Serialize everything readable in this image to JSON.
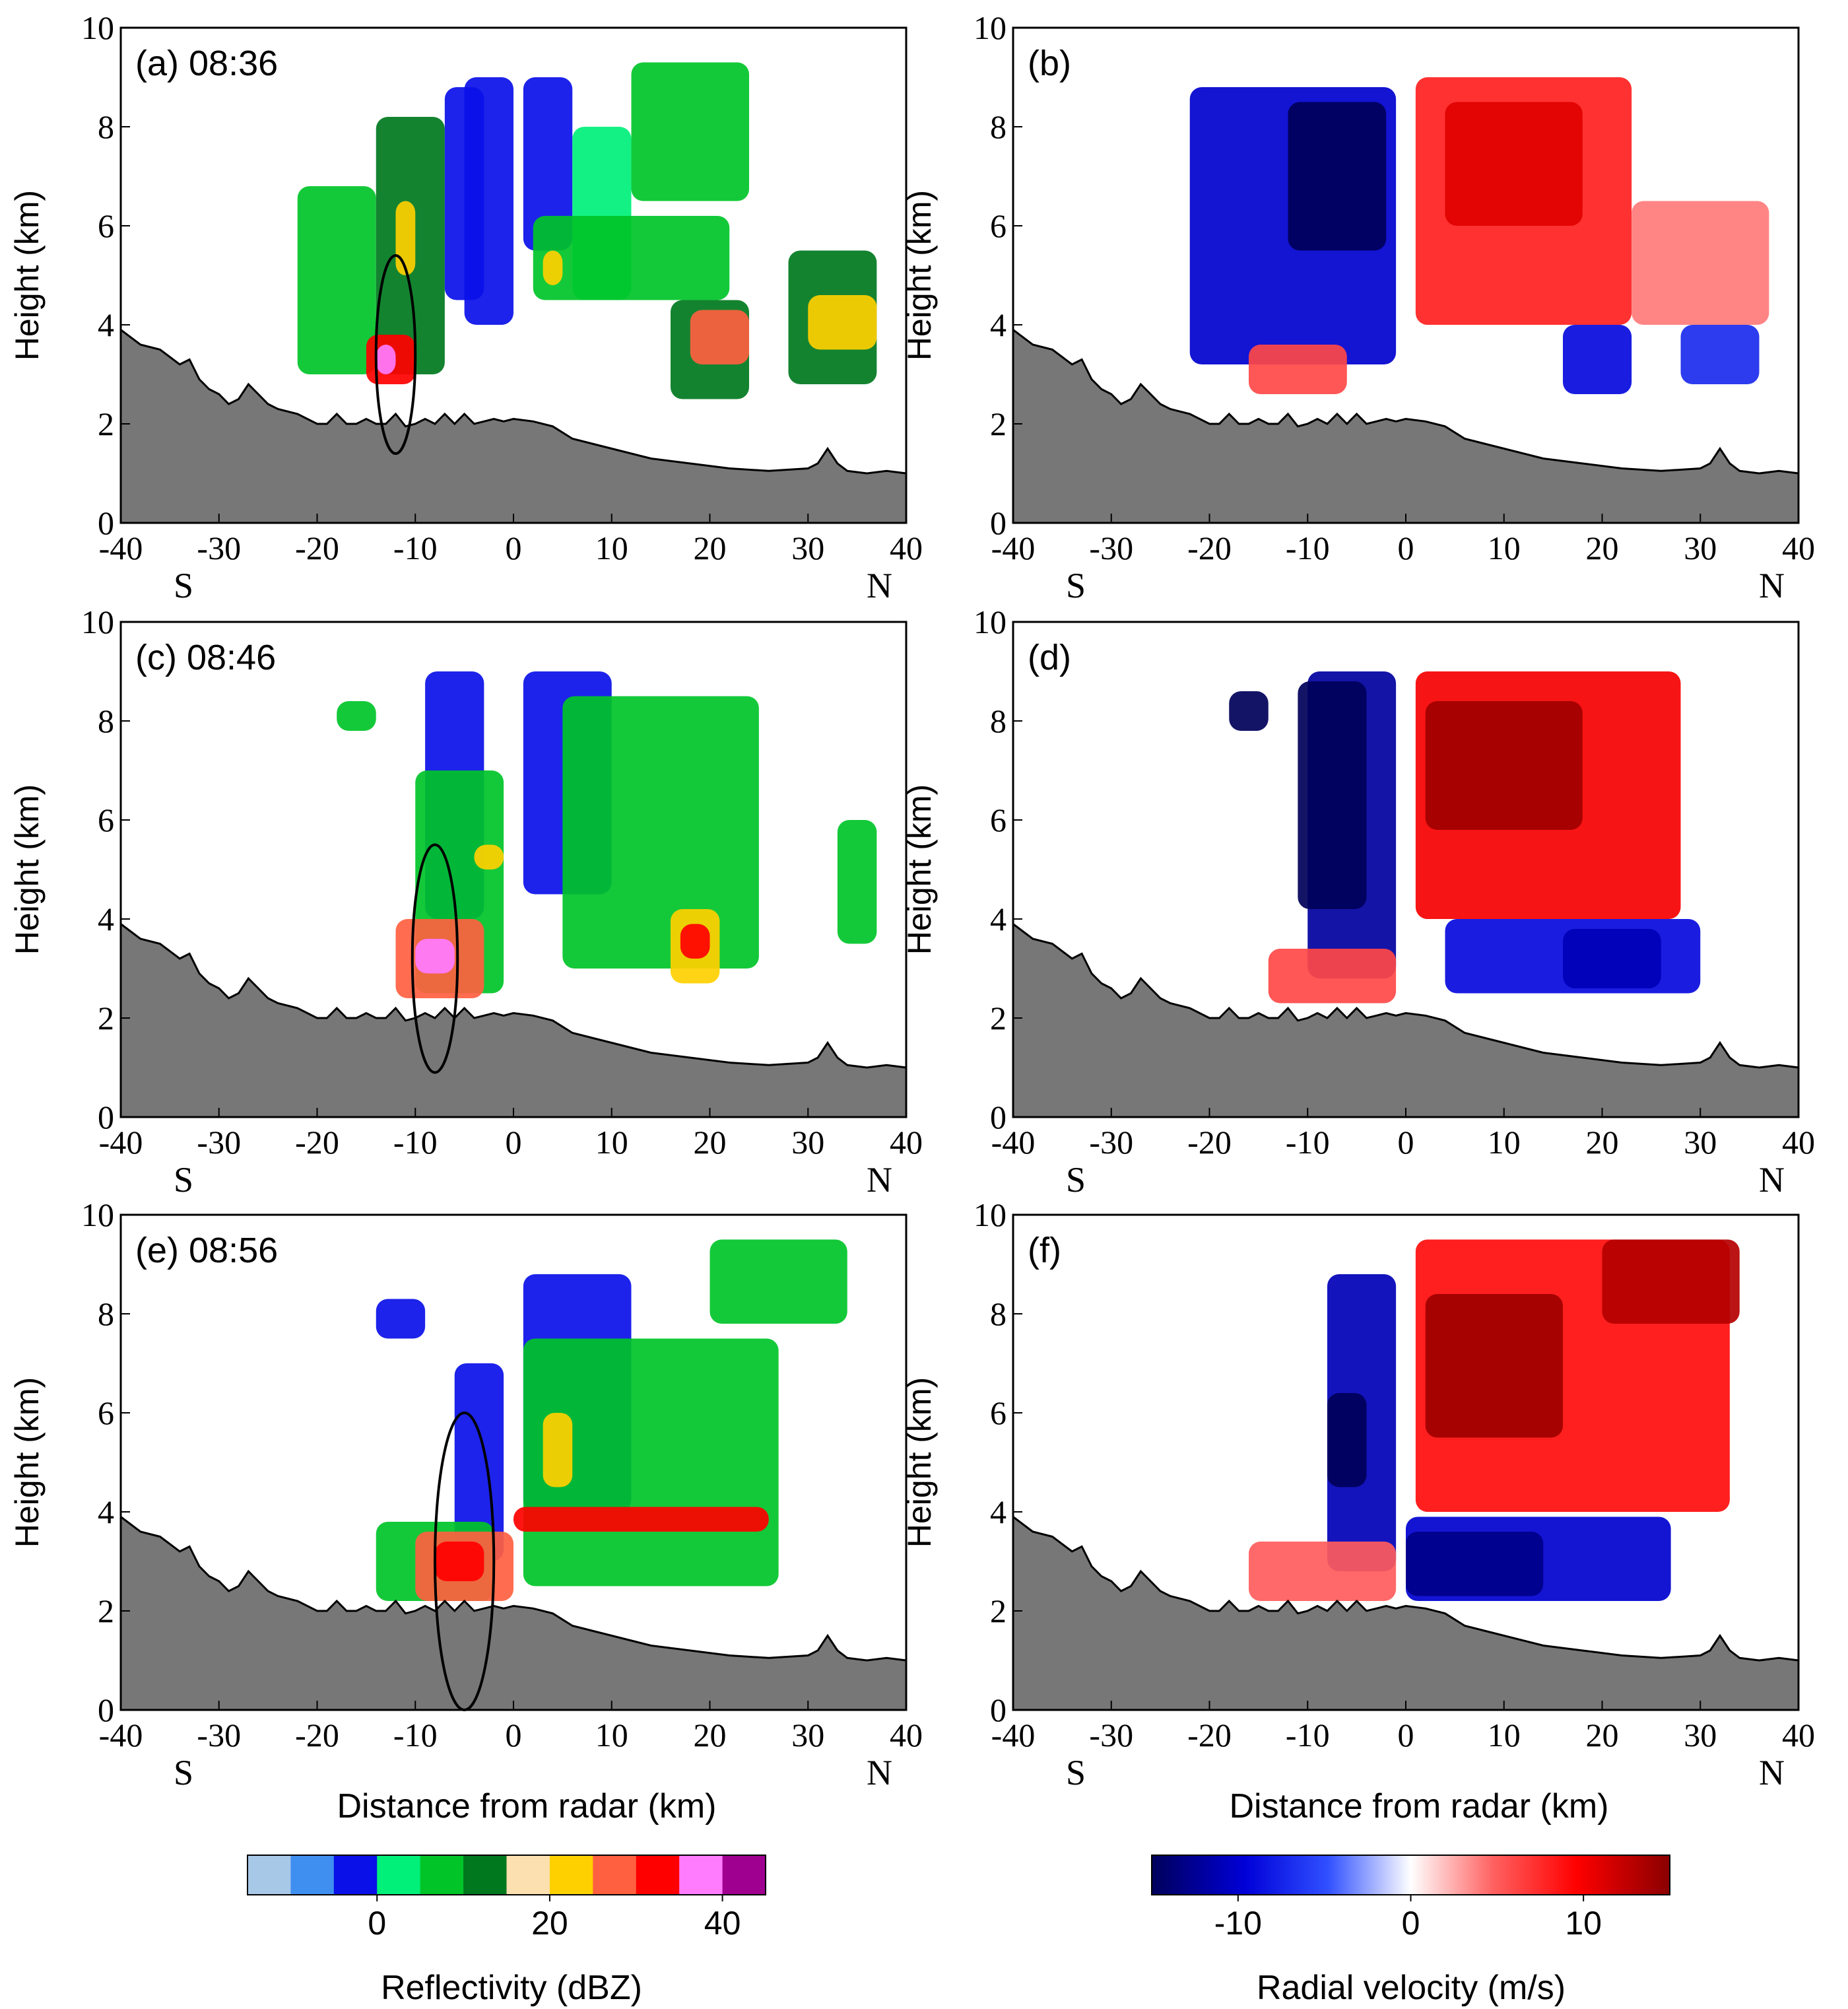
{
  "chart_data": {
    "type": "radar-cross-section-grid",
    "layout": "3 rows x 2 columns",
    "common": {
      "xlabel": "Distance from radar (km)",
      "ylabel": "Height (km)",
      "xlim": [
        -40,
        40
      ],
      "ylim": [
        0,
        10
      ],
      "xticks": [
        -40,
        -30,
        -20,
        -10,
        0,
        10,
        20,
        30,
        40
      ],
      "yticks": [
        0,
        2,
        4,
        6,
        8,
        10
      ],
      "direction_left": "S",
      "direction_right": "N",
      "terrain": {
        "x": [
          -40,
          -38,
          -36,
          -34,
          -33,
          -32,
          -31,
          -30,
          -29,
          -28,
          -27,
          -26,
          -25,
          -24,
          -22,
          -20,
          -19,
          -18,
          -17,
          -16,
          -15,
          -14,
          -13,
          -12,
          -11,
          -10,
          -9,
          -8,
          -7,
          -6,
          -5,
          -4,
          -3,
          -2,
          -1,
          0,
          2,
          4,
          6,
          8,
          10,
          14,
          18,
          22,
          26,
          30,
          31,
          32,
          33,
          34,
          36,
          38,
          40
        ],
        "h": [
          3.9,
          3.6,
          3.5,
          3.2,
          3.3,
          2.9,
          2.7,
          2.6,
          2.4,
          2.5,
          2.8,
          2.6,
          2.4,
          2.3,
          2.2,
          2.0,
          2.0,
          2.2,
          2.0,
          2.0,
          2.1,
          2.0,
          2.0,
          2.2,
          1.95,
          2.0,
          2.1,
          2.0,
          2.2,
          2.0,
          2.2,
          2.0,
          2.05,
          2.1,
          2.05,
          2.1,
          2.05,
          1.95,
          1.7,
          1.6,
          1.5,
          1.3,
          1.2,
          1.1,
          1.05,
          1.1,
          1.2,
          1.5,
          1.2,
          1.05,
          1.0,
          1.05,
          1.0
        ]
      }
    },
    "panels": [
      {
        "label": "(a) 08:36",
        "field": "reflectivity",
        "circle": {
          "x": -12,
          "y": 3.4,
          "r": 2.0
        }
      },
      {
        "label": "(b)",
        "field": "radial_velocity"
      },
      {
        "label": "(c) 08:46",
        "field": "reflectivity",
        "circle": {
          "x": -8,
          "y": 3.2,
          "r": 2.3
        }
      },
      {
        "label": "(d)",
        "field": "radial_velocity"
      },
      {
        "label": "(e) 08:56",
        "field": "reflectivity",
        "circle": {
          "x": -5,
          "y": 3.0,
          "r": 3.0
        }
      },
      {
        "label": "(f)",
        "field": "radial_velocity"
      }
    ],
    "reflectivity_colorbar": {
      "label": "Reflectivity (dBZ)",
      "bins": [
        -15,
        -10,
        -5,
        0,
        5,
        10,
        15,
        20,
        25,
        30,
        35,
        40,
        45
      ],
      "colors": [
        "#a8c8e8",
        "#3f8ff0",
        "#0a10e8",
        "#00f07a",
        "#00c428",
        "#00781e",
        "#fce0b0",
        "#ffd000",
        "#ff6040",
        "#ff0000",
        "#ff7cff",
        "#a00090"
      ],
      "ticks": [
        0,
        20,
        40
      ]
    },
    "velocity_colorbar": {
      "label": "Radial velocity (m/s)",
      "range": [
        -15,
        15
      ],
      "ticks": [
        -10,
        0,
        10
      ]
    },
    "echo_regions_note": "Schematic echo blobs: [panel, x1, x2, y1, y2, value]"
  },
  "colors": {
    "terrain": "#777777",
    "velocity_neg": "#00005a",
    "velocity_pos": "#8a0000"
  }
}
